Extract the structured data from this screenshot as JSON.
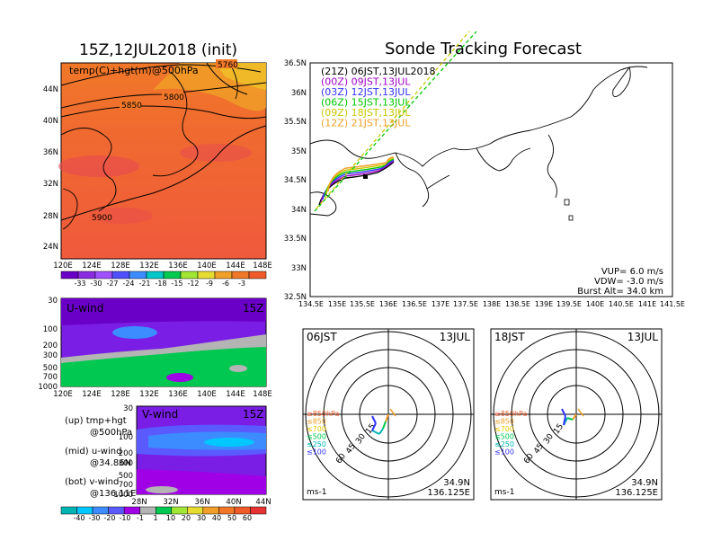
{
  "header": {
    "left_title": "15Z,12JUL2018 (init)",
    "right_title": "Sonde Tracking Forecast"
  },
  "top_map": {
    "label": "temp(C)+hgt(m)@500hPa",
    "contour_labels": [
      "5760",
      "5800",
      "5850",
      "5900"
    ],
    "x_ticks": [
      "120E",
      "124E",
      "128E",
      "132E",
      "136E",
      "140E",
      "144E",
      "148E"
    ],
    "y_ticks": [
      "44N",
      "40N",
      "36N",
      "32N",
      "28N",
      "24N"
    ]
  },
  "temp_colorbar": {
    "labels": [
      "-33",
      "-30",
      "-27",
      "-24",
      "-21",
      "-18",
      "-15",
      "-12",
      "-9",
      "-6",
      "-3"
    ],
    "colors": [
      "#6a00c8",
      "#8a2be2",
      "#a050ff",
      "#5050ff",
      "#3c8cff",
      "#00c8c8",
      "#00c850",
      "#a0e632",
      "#e6dc32",
      "#f0a028",
      "#f07828",
      "#f05a28"
    ]
  },
  "u_wind": {
    "label": "U-wind",
    "time": "15Z",
    "y_ticks": [
      "30",
      "100",
      "200",
      "300",
      "500",
      "700",
      "1000"
    ],
    "x_ticks": [
      "120E",
      "124E",
      "128E",
      "132E",
      "136E",
      "140E",
      "144E",
      "148E"
    ]
  },
  "v_wind": {
    "label": "V-wind",
    "time": "15Z",
    "y_ticks": [
      "30",
      "100",
      "200",
      "300",
      "500",
      "700",
      "1000"
    ],
    "x_ticks": [
      "28N",
      "32N",
      "36N",
      "40N",
      "44N"
    ]
  },
  "legend_notes": [
    {
      "tag": "(up)",
      "line1": "tmp+hgt",
      "line2": "@500hPa"
    },
    {
      "tag": "(mid)",
      "line1": "u-wind",
      "line2": "@34.86N"
    },
    {
      "tag": "(bot)",
      "line1": "v-wind",
      "line2": "@136.11E"
    }
  ],
  "wind_colorbar": {
    "labels": [
      "-40",
      "-30",
      "-20",
      "-10",
      "-1",
      "1",
      "10",
      "20",
      "30",
      "40",
      "50",
      "60"
    ],
    "colors": [
      "#00b4b4",
      "#00c8ff",
      "#3c8cff",
      "#5a5aff",
      "#a000e6",
      "#b4b4b4",
      "#00c850",
      "#a0e632",
      "#e6dc32",
      "#f0a028",
      "#f07828",
      "#f05a28",
      "#e63232"
    ]
  },
  "tracking_map": {
    "x_ticks": [
      "134.5E",
      "135E",
      "135.5E",
      "136E",
      "136.5E",
      "137E",
      "137.5E",
      "138E",
      "138.5E",
      "139E",
      "139.5E",
      "140E",
      "140.5E",
      "141E",
      "141.5E"
    ],
    "y_ticks": [
      "36.5N",
      "36N",
      "35.5N",
      "35N",
      "34.5N",
      "34N",
      "33.5N",
      "33N",
      "32.5N"
    ],
    "legend": [
      {
        "code": "(21Z)",
        "time": "06JST,13JUL2018",
        "color": "#000000"
      },
      {
        "code": "(00Z)",
        "time": "09JST,13JUL",
        "color": "#a000c8"
      },
      {
        "code": "(03Z)",
        "time": "12JST,13JUL",
        "color": "#3232ff"
      },
      {
        "code": "(06Z)",
        "time": "15JST,13JUL",
        "color": "#00c800"
      },
      {
        "code": "(09Z)",
        "time": "18JST,13JUL",
        "color": "#c8c800"
      },
      {
        "code": "(12Z)",
        "time": "21JST,13JUL",
        "color": "#f0a028"
      }
    ],
    "stats": {
      "vup": "VUP=  6.0 m/s",
      "vdw": "VDW= -3.0 m/s",
      "burst": "Burst Alt= 34.0 km"
    }
  },
  "hodographs": [
    {
      "time": "06JST",
      "date": "13JUL",
      "rings": [
        "15",
        "30",
        "45",
        "60"
      ],
      "unit": "ms-1",
      "lat": "34.9N",
      "lon": "136.125E",
      "levels": [
        {
          "label": "≥850hPa",
          "color": "#f05a28"
        },
        {
          "label": "≤850",
          "color": "#f0a028"
        },
        {
          "label": "≤700",
          "color": "#e6c800"
        },
        {
          "label": "≤500",
          "color": "#00c850"
        },
        {
          "label": "≤250",
          "color": "#00b4b4"
        },
        {
          "label": "≤100",
          "color": "#3232ff"
        }
      ]
    },
    {
      "time": "18JST",
      "date": "13JUL",
      "rings": [
        "15",
        "30",
        "45",
        "60"
      ],
      "unit": "ms-1",
      "lat": "34.9N",
      "lon": "136.125E",
      "levels": [
        {
          "label": "≥850hPa",
          "color": "#f05a28"
        },
        {
          "label": "≤850",
          "color": "#f0a028"
        },
        {
          "label": "≤700",
          "color": "#e6c800"
        },
        {
          "label": "≤500",
          "color": "#00c850"
        },
        {
          "label": "≤250",
          "color": "#00b4b4"
        },
        {
          "label": "≤100",
          "color": "#3232ff"
        }
      ]
    }
  ]
}
